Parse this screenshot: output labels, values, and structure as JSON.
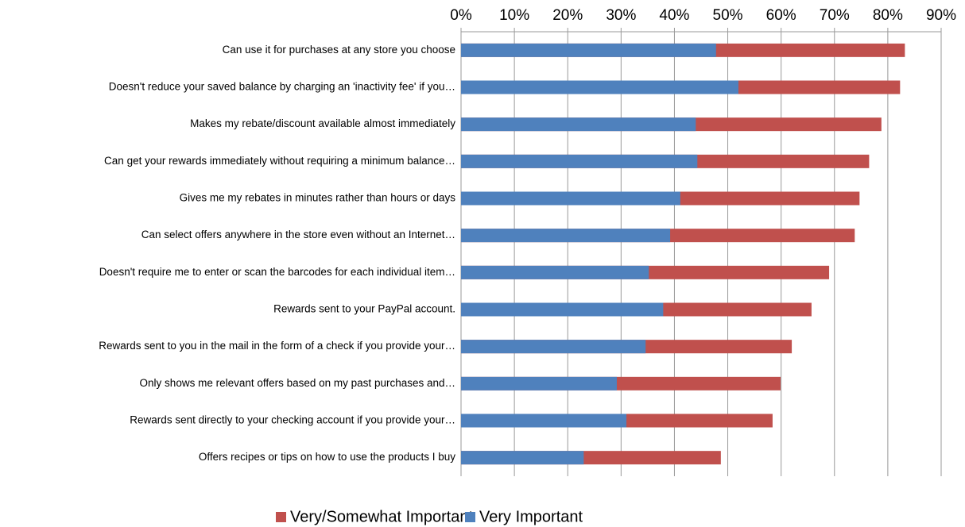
{
  "chart_data": {
    "type": "bar",
    "orientation": "horizontal",
    "categories": [
      "Can use it for purchases at any store you choose",
      "Doesn't reduce your saved balance by charging an 'inactivity fee' if you…",
      "Makes my rebate/discount available almost immediately",
      "Can get your rewards immediately without requiring a minimum balance…",
      "Gives me my rebates in minutes rather than hours or days",
      "Can select offers anywhere in the store even without an Internet…",
      "Doesn't require me to enter or scan the barcodes for each individual item…",
      "Rewards sent to your PayPal account.",
      "Rewards sent to you in the mail in the form of a check if you provide your…",
      "Only shows me relevant offers based on my past purchases and…",
      "Rewards sent directly to your checking account if you provide your…",
      "Offers recipes or tips on how to use the products I buy"
    ],
    "series": [
      {
        "name": "Very/Somewhat Important",
        "color": "#c0504d",
        "values": [
          83.2,
          82.3,
          78.8,
          76.5,
          74.7,
          73.8,
          69.0,
          65.7,
          62.0,
          59.9,
          58.4,
          48.7
        ]
      },
      {
        "name": "Very Important",
        "color": "#4f81bd",
        "values": [
          47.8,
          52.0,
          44.0,
          44.3,
          41.1,
          39.2,
          35.2,
          37.9,
          34.6,
          29.2,
          31.0,
          23.0
        ]
      }
    ],
    "xlim": [
      0,
      90
    ],
    "xticks": [
      {
        "value": 0,
        "label": "0%"
      },
      {
        "value": 10,
        "label": "10%"
      },
      {
        "value": 20,
        "label": "20%"
      },
      {
        "value": 30,
        "label": "30%"
      },
      {
        "value": 40,
        "label": "40%"
      },
      {
        "value": 50,
        "label": "50%"
      },
      {
        "value": 60,
        "label": "60%"
      },
      {
        "value": 70,
        "label": "70%"
      },
      {
        "value": 80,
        "label": "80%"
      },
      {
        "value": 90,
        "label": "90%"
      }
    ],
    "grid": true,
    "legend": "bottom"
  }
}
